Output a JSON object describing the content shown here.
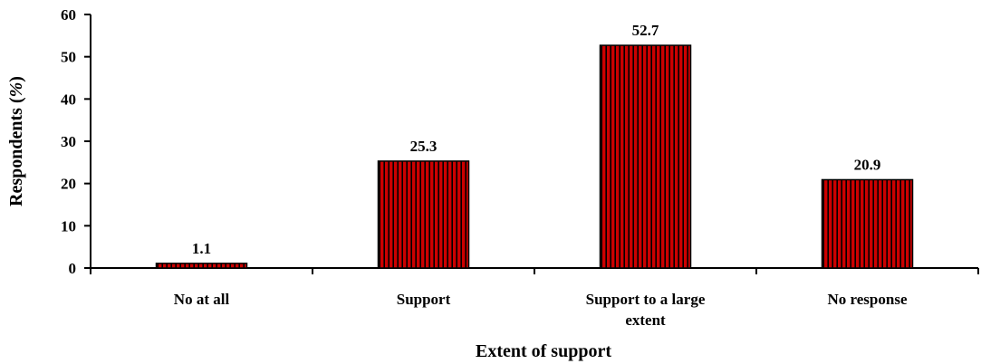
{
  "chart_data": {
    "type": "bar",
    "categories": [
      [
        "No at all"
      ],
      [
        "Support"
      ],
      [
        "Support to a large",
        "extent"
      ],
      [
        "No response"
      ]
    ],
    "values": [
      1.1,
      25.3,
      52.7,
      20.9
    ],
    "data_labels": [
      "1.1",
      "25.3",
      "52.7",
      "20.9"
    ],
    "xlabel": "Extent of support",
    "ylabel_main": "Respondents (",
    "ylabel_italic": "%",
    "ylabel_end": ")",
    "ylim": [
      0,
      60
    ],
    "yticks": [
      "0",
      "10",
      "20",
      "30",
      "40",
      "50",
      "60"
    ],
    "grid": false,
    "legend": "none",
    "bar_color": "#cc0000",
    "bar_stripe_color": "#000000"
  }
}
